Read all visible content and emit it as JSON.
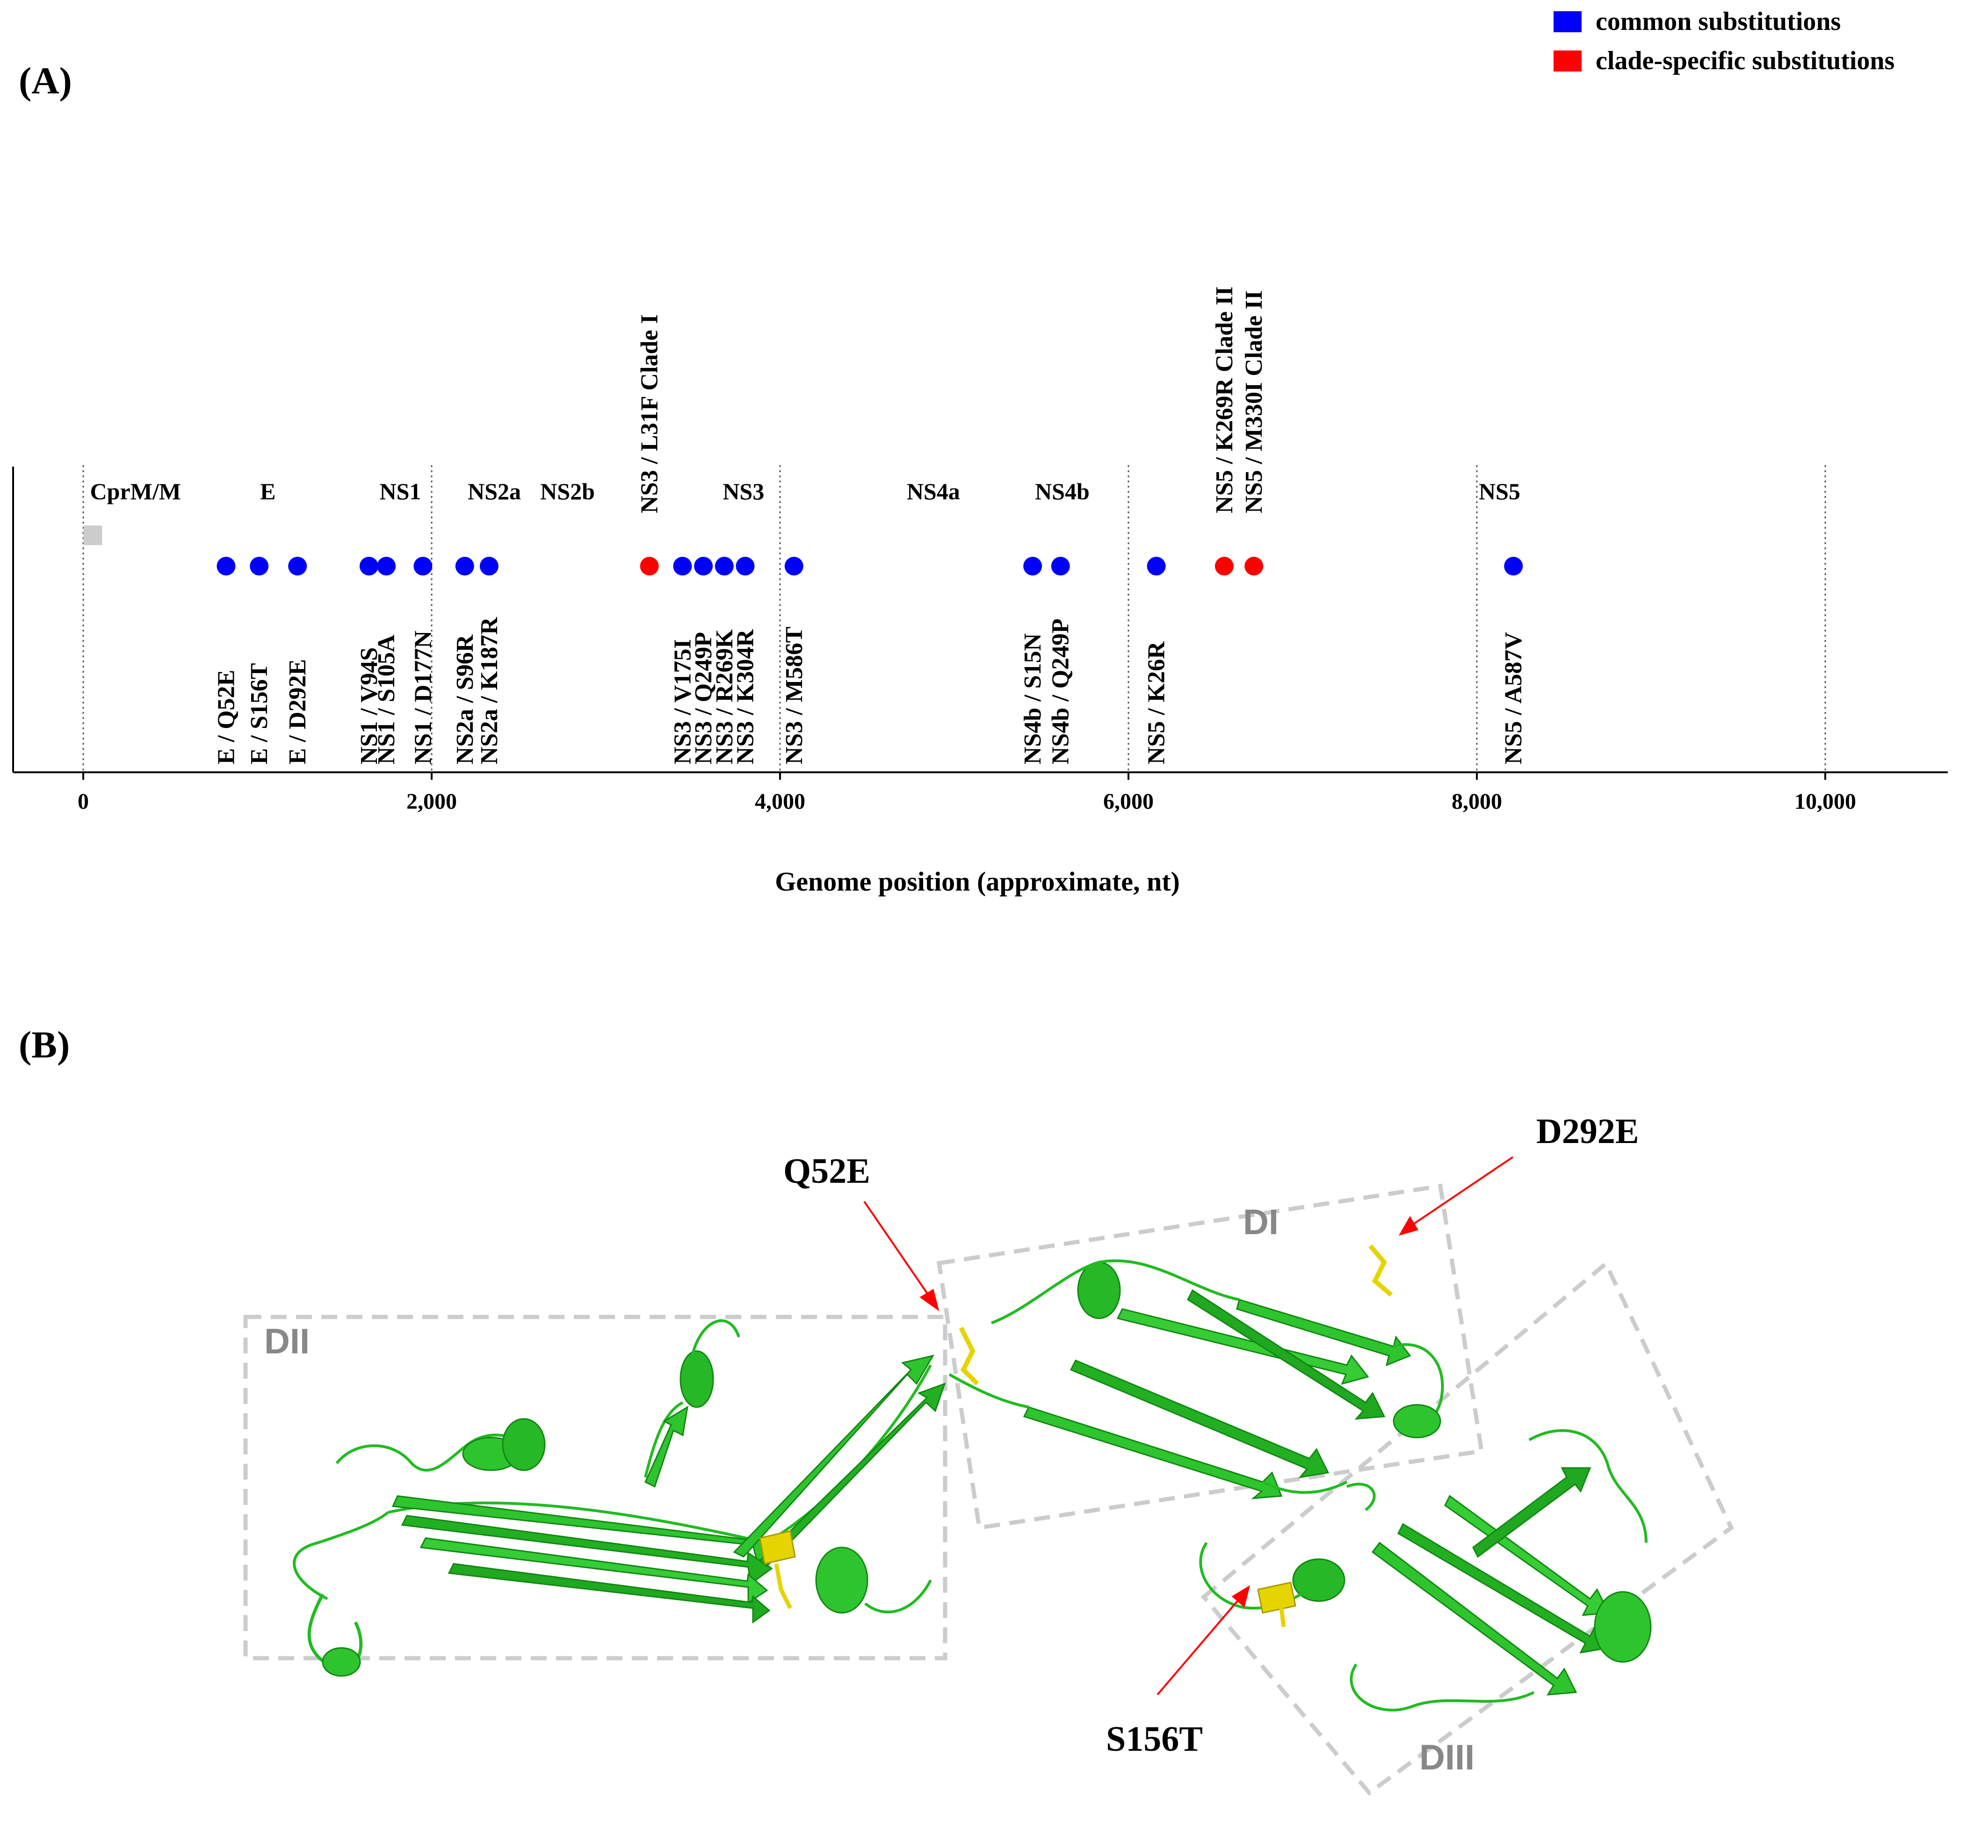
{
  "panel_a": {
    "label": "(A)",
    "legend": [
      {
        "label": "common substitutions",
        "color": "#0000ff"
      },
      {
        "label": "clade-specific substitutions",
        "color": "#ff0000"
      }
    ]
  },
  "panel_b": {
    "label": "(B)",
    "domains": [
      "DI",
      "DII",
      "DIII"
    ],
    "callouts": [
      "Q52E",
      "D292E",
      "S156T"
    ],
    "protein_color": "#22bb22",
    "highlight_color": "#e6d400",
    "box_color": "#cccccc",
    "arrow_color": "#ff0000"
  },
  "chart_data": {
    "type": "scatter",
    "xlabel": "Genome position (approximate, nt)",
    "xlim": [
      -400,
      10700
    ],
    "xticks": [
      0,
      2000,
      4000,
      6000,
      8000,
      10000
    ],
    "xtick_labels": [
      "0",
      "2,000",
      "4,000",
      "6,000",
      "8,000",
      "10,000"
    ],
    "gene_boundaries": [
      0,
      2000,
      4000,
      6000,
      8000,
      10000
    ],
    "gene_labels": [
      {
        "name": "CprM/M",
        "x": 300
      },
      {
        "name": "E",
        "x": 1060
      },
      {
        "name": "NS1",
        "x": 1820
      },
      {
        "name": "NS2a",
        "x": 2360
      },
      {
        "name": "NS2b",
        "x": 2780
      },
      {
        "name": "NS3",
        "x": 3790
      },
      {
        "name": "NS4a",
        "x": 4880
      },
      {
        "name": "NS4b",
        "x": 5620
      },
      {
        "name": "NS5",
        "x": 8130
      }
    ],
    "cprm_marker": {
      "x": 55,
      "color": "#cccccc"
    },
    "series": [
      {
        "name": "common substitutions",
        "color": "#0000ff",
        "points": [
          {
            "x": 820,
            "label": "E / Q52E"
          },
          {
            "x": 1010,
            "label": "E / S156T"
          },
          {
            "x": 1230,
            "label": "E / D292E"
          },
          {
            "x": 1640,
            "label": "NS1 / V94S"
          },
          {
            "x": 1740,
            "label": "NS1 / S105A"
          },
          {
            "x": 1950,
            "label": "NS1 / D177N"
          },
          {
            "x": 2190,
            "label": "NS2a / S96R"
          },
          {
            "x": 2330,
            "label": "NS2a / K187R"
          },
          {
            "x": 3440,
            "label": "NS3 / V175I"
          },
          {
            "x": 3560,
            "label": "NS3 / Q249P"
          },
          {
            "x": 3680,
            "label": "NS3 / R269K"
          },
          {
            "x": 3800,
            "label": "NS3 / K304R"
          },
          {
            "x": 4080,
            "label": "NS3 / M586T"
          },
          {
            "x": 5450,
            "label": "NS4b / S15N"
          },
          {
            "x": 5610,
            "label": "NS4b / Q249P"
          },
          {
            "x": 6160,
            "label": "NS5 / K26R"
          },
          {
            "x": 8210,
            "label": "NS5 / A587V"
          }
        ]
      },
      {
        "name": "clade-specific substitutions",
        "color": "#ff0000",
        "points": [
          {
            "x": 3250,
            "label": "NS3 / L31F Clade I"
          },
          {
            "x": 6550,
            "label": "NS5 / K269R Clade II"
          },
          {
            "x": 6720,
            "label": "NS5 / M330I Clade II"
          }
        ]
      }
    ]
  }
}
